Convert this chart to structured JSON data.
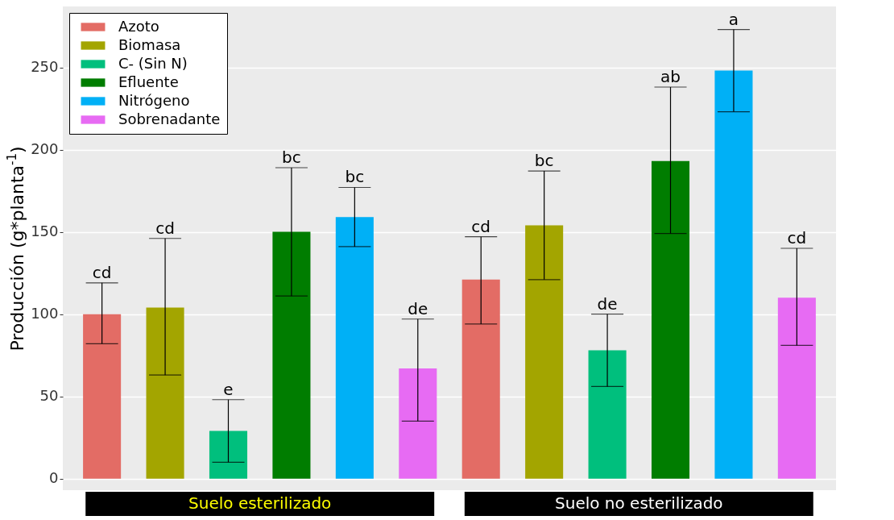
{
  "chart_data": {
    "type": "bar",
    "ylabel": "Producción (g*planta$^{-1}$)",
    "categories": [
      "Suelo esterilizado",
      "Suelo no esterilizado"
    ],
    "series": [
      {
        "name": "Azoto",
        "color": "#e36c65",
        "values": [
          100,
          121
        ],
        "errors": [
          [
            82,
            119
          ],
          [
            94,
            147
          ]
        ]
      },
      {
        "name": "Biomasa",
        "color": "#a3a500",
        "values": [
          104,
          154
        ],
        "errors": [
          [
            63,
            146
          ],
          [
            121,
            187
          ]
        ]
      },
      {
        "name": "C- (Sin N)",
        "color": "#00bf7d",
        "values": [
          29,
          78
        ],
        "errors": [
          [
            10,
            48
          ],
          [
            56,
            100
          ]
        ]
      },
      {
        "name": "Efluente",
        "color": "#007d00",
        "values": [
          150,
          193
        ],
        "errors": [
          [
            111,
            189
          ],
          [
            149,
            238
          ]
        ]
      },
      {
        "name": "Nitrógeno",
        "color": "#00b0f6",
        "values": [
          159,
          248
        ],
        "errors": [
          [
            141,
            177
          ],
          [
            223,
            273
          ]
        ]
      },
      {
        "name": "Sobrenadante",
        "color": "#e76bf3",
        "values": [
          67,
          110
        ],
        "errors": [
          [
            35,
            97
          ],
          [
            81,
            140
          ]
        ]
      }
    ],
    "annotations": [
      "cd",
      "cd",
      "e",
      "bc",
      "bc",
      "de",
      "cd",
      "bc",
      "de",
      "ab",
      "a",
      "cd"
    ],
    "ylim": [
      -7,
      287
    ],
    "yticks": [
      0,
      50,
      100,
      150,
      200,
      250
    ],
    "grid": "y",
    "legend": "top left"
  }
}
